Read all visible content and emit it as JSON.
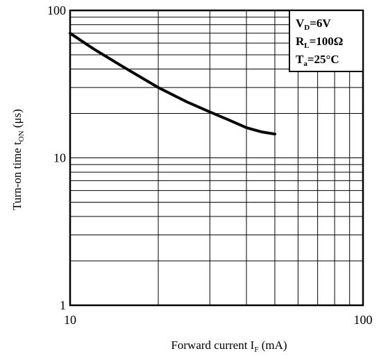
{
  "chart_data": {
    "type": "line",
    "x_scale": "log",
    "y_scale": "log",
    "xlim": [
      10,
      100
    ],
    "ylim": [
      1,
      100
    ],
    "grid": true,
    "x_ticks": [
      "10",
      "100"
    ],
    "y_ticks": [
      "1",
      "10",
      "100"
    ],
    "xlabel": {
      "main": "Forward current I",
      "sub": "F",
      "tail": " (mA)"
    },
    "ylabel": {
      "main": "Turn-on time t",
      "sub": "ON",
      "tail": " (μs)"
    },
    "conditions": [
      {
        "main": "V",
        "sub": "D",
        "tail": "=6V"
      },
      {
        "main": "R",
        "sub": "L",
        "tail": "=100Ω"
      },
      {
        "main": "T",
        "sub": "a",
        "tail": "=25°C"
      }
    ],
    "series": [
      {
        "x": [
          10,
          12,
          15,
          20,
          25,
          30,
          35,
          40,
          45,
          50
        ],
        "y": [
          70,
          55,
          42,
          30,
          24,
          20.5,
          18,
          16,
          15,
          14.5
        ]
      }
    ]
  }
}
